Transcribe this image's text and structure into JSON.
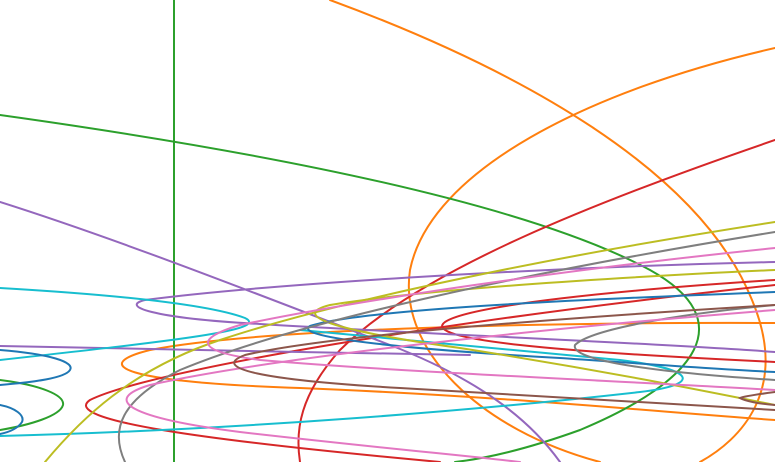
{
  "figure": {
    "type": "ellipse-curve-plot",
    "palette": {
      "blue": "#1f77b4",
      "orange": "#ff7f0e",
      "green": "#2ca02c",
      "red": "#d62728",
      "purple": "#9467bd",
      "brown": "#8c564b",
      "pink": "#e377c2",
      "gray": "#7f7f7f",
      "olive": "#bcbd22",
      "cyan": "#17becf"
    },
    "curves": [
      {
        "name": "orange-outer-curve",
        "color": "orange"
      },
      {
        "name": "orange-inner-ellipse",
        "color": "orange"
      },
      {
        "name": "orange-flat-ellipse",
        "color": "orange"
      },
      {
        "name": "green-vertical-line",
        "color": "green"
      },
      {
        "name": "green-large-ellipse",
        "color": "green"
      },
      {
        "name": "green-small-ellipse",
        "color": "green"
      },
      {
        "name": "red-diagonal-curve",
        "color": "red"
      },
      {
        "name": "red-low-ellipse",
        "color": "red"
      },
      {
        "name": "red-mid-ellipse",
        "color": "red"
      },
      {
        "name": "purple-diagonal-line",
        "color": "purple"
      },
      {
        "name": "purple-flat-ellipse",
        "color": "purple"
      },
      {
        "name": "purple-horizontal-line",
        "color": "purple"
      },
      {
        "name": "cyan-upper-ellipse",
        "color": "cyan"
      },
      {
        "name": "cyan-lower-line",
        "color": "cyan"
      },
      {
        "name": "blue-ellipse",
        "color": "blue"
      },
      {
        "name": "blue-small-ellipse",
        "color": "blue"
      },
      {
        "name": "blue-tiny-ellipse",
        "color": "blue"
      },
      {
        "name": "olive-large-ellipse",
        "color": "olive"
      },
      {
        "name": "olive-flat-line",
        "color": "olive"
      },
      {
        "name": "gray-large-ellipse",
        "color": "gray"
      },
      {
        "name": "gray-right-ellipse",
        "color": "gray"
      },
      {
        "name": "pink-upper-line",
        "color": "pink"
      },
      {
        "name": "pink-lower-ellipse",
        "color": "pink"
      },
      {
        "name": "brown-ellipse",
        "color": "brown"
      },
      {
        "name": "brown-lower-line",
        "color": "brown"
      }
    ]
  }
}
